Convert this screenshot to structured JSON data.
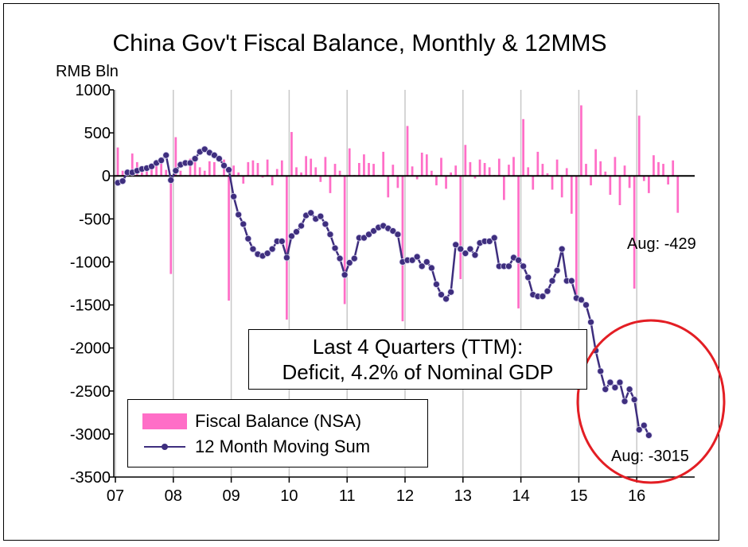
{
  "chart_data": {
    "type": "bar+line",
    "title": "China Gov't Fiscal Balance, Monthly & 12MMS",
    "ylabel": "RMB Bln",
    "xlabel": "",
    "ylim": [
      -3500,
      1000
    ],
    "yticks": [
      "1000",
      "500",
      "0",
      "-500",
      "-1000",
      "-1500",
      "-2000",
      "-2500",
      "-3000",
      "-3500"
    ],
    "xticks": [
      "07",
      "08",
      "09",
      "10",
      "11",
      "12",
      "13",
      "14",
      "15",
      "16"
    ],
    "x_start_year": 2007,
    "colors": {
      "bars": "#ff6ec7",
      "line": "#3e2e7e",
      "circle": "#e31e24"
    },
    "series": [
      {
        "name": "Fiscal Balance (NSA)",
        "kind": "bar",
        "values": [
          330,
          60,
          40,
          260,
          160,
          80,
          70,
          120,
          180,
          150,
          70,
          -1140,
          450,
          60,
          10,
          200,
          210,
          100,
          60,
          170,
          160,
          10,
          190,
          -1450,
          120,
          40,
          -90,
          160,
          180,
          150,
          -20,
          190,
          -110,
          80,
          180,
          -1670,
          510,
          100,
          40,
          230,
          200,
          100,
          -70,
          220,
          -200,
          140,
          60,
          -1490,
          320,
          10,
          150,
          250,
          150,
          140,
          10,
          280,
          -250,
          130,
          -140,
          -1690,
          580,
          110,
          -40,
          270,
          250,
          60,
          -110,
          210,
          -150,
          40,
          120,
          -1200,
          360,
          160,
          -30,
          190,
          150,
          100,
          10,
          200,
          -280,
          130,
          220,
          -1540,
          660,
          100,
          -160,
          280,
          140,
          30,
          -160,
          190,
          -250,
          90,
          -440,
          -1460,
          820,
          140,
          -110,
          310,
          170,
          50,
          -220,
          220,
          -340,
          120,
          -140,
          -1310,
          700,
          -60,
          -200,
          240,
          160,
          140,
          -100,
          180,
          -429
        ]
      },
      {
        "name": "12 Month Moving Sum",
        "kind": "line",
        "values": [
          -80,
          -60,
          40,
          40,
          60,
          80,
          90,
          110,
          150,
          180,
          240,
          -50,
          60,
          130,
          150,
          150,
          200,
          280,
          310,
          270,
          240,
          200,
          120,
          70,
          -240,
          -450,
          -560,
          -730,
          -850,
          -910,
          -930,
          -900,
          -850,
          -760,
          -760,
          -950,
          -700,
          -650,
          -580,
          -460,
          -430,
          -500,
          -470,
          -560,
          -680,
          -840,
          -960,
          -1150,
          -1010,
          -960,
          -720,
          -720,
          -680,
          -640,
          -600,
          -580,
          -610,
          -640,
          -680,
          -1000,
          -980,
          -980,
          -940,
          -1050,
          -1000,
          -1070,
          -1260,
          -1380,
          -1430,
          -1350,
          -800,
          -850,
          -900,
          -850,
          -920,
          -780,
          -760,
          -760,
          -720,
          -1050,
          -1050,
          -1050,
          -950,
          -980,
          -1050,
          -1180,
          -1380,
          -1400,
          -1400,
          -1340,
          -1220,
          -1100,
          -850,
          -1220,
          -1220,
          -1420,
          -1440,
          -1500,
          -1700,
          -2030,
          -2270,
          -2480,
          -2400,
          -2460,
          -2400,
          -2620,
          -2480,
          -2600,
          -2950,
          -2900,
          -3015
        ]
      }
    ],
    "annotations": {
      "bar_last": "Aug: -429",
      "line_last": "Aug: -3015",
      "callout_line1": "Last 4 Quarters (TTM):",
      "callout_line2": "Deficit, 4.2% of Nominal GDP"
    },
    "legend": {
      "placement": "bottom-left"
    }
  }
}
